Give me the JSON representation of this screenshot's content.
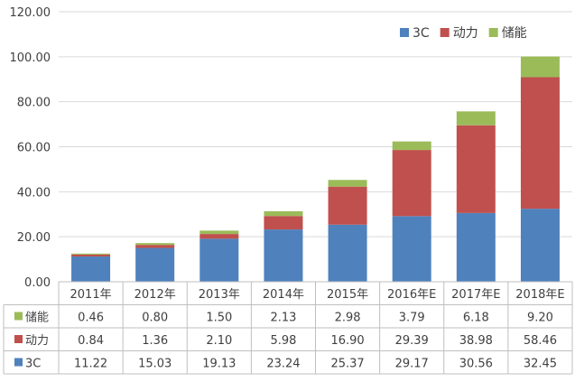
{
  "chart_data": {
    "type": "bar",
    "stacked": true,
    "categories": [
      "2011年",
      "2012年",
      "2013年",
      "2014年",
      "2015年",
      "2016年E",
      "2017年E",
      "2018年E"
    ],
    "series": [
      {
        "name": "3C",
        "color": "#4f81bd",
        "values": [
          11.22,
          15.03,
          19.13,
          23.24,
          25.37,
          29.17,
          30.56,
          32.45
        ]
      },
      {
        "name": "动力",
        "color": "#c0504d",
        "values": [
          0.84,
          1.36,
          2.1,
          5.98,
          16.9,
          29.39,
          38.98,
          58.46
        ]
      },
      {
        "name": "储能",
        "color": "#9bbb59",
        "values": [
          0.46,
          0.8,
          1.5,
          2.13,
          2.98,
          3.79,
          6.18,
          9.2
        ]
      }
    ],
    "table_rows": [
      {
        "name": "储能",
        "color": "#9bbb59",
        "cells": [
          "0.46",
          "0.80",
          "1.50",
          "2.13",
          "2.98",
          "3.79",
          "6.18",
          "9.20"
        ]
      },
      {
        "name": "动力",
        "color": "#c0504d",
        "cells": [
          "0.84",
          "1.36",
          "2.10",
          "5.98",
          "16.90",
          "29.39",
          "38.98",
          "58.46"
        ]
      },
      {
        "name": "3C",
        "color": "#4f81bd",
        "cells": [
          "11.22",
          "15.03",
          "19.13",
          "23.24",
          "25.37",
          "29.17",
          "30.56",
          "32.45"
        ]
      }
    ],
    "ylim": [
      0,
      120
    ],
    "yticks": [
      "0.00",
      "20.00",
      "40.00",
      "60.00",
      "80.00",
      "100.00",
      "120.00"
    ],
    "grid": true,
    "legend_position": "top-right",
    "legend": [
      {
        "name": "3C",
        "color": "#4f81bd"
      },
      {
        "name": "动力",
        "color": "#c0504d"
      },
      {
        "name": "储能",
        "color": "#9bbb59"
      }
    ]
  }
}
